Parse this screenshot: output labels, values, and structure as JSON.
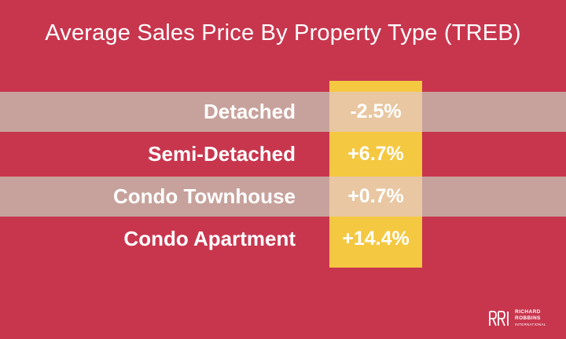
{
  "title": "Average Sales Price By Property Type (TREB)",
  "colors": {
    "background": "#c8364e",
    "highlight_column": "#f5c842",
    "shaded_row": "#c7a9a0",
    "text": "#ffffff"
  },
  "chart_data": {
    "type": "table",
    "title": "Average Sales Price By Property Type (TREB)",
    "categories": [
      "Detached",
      "Semi-Detached",
      "Condo Townhouse",
      "Condo Apartment"
    ],
    "values": [
      -2.5,
      6.7,
      0.7,
      14.4
    ],
    "value_labels": [
      "-2.5%",
      "+6.7%",
      "+0.7%",
      "+14.4%"
    ]
  },
  "logo": {
    "mark": "RRI",
    "line1": "RICHARD",
    "line2": "ROBBINS",
    "line3": "INTERNATIONAL"
  }
}
